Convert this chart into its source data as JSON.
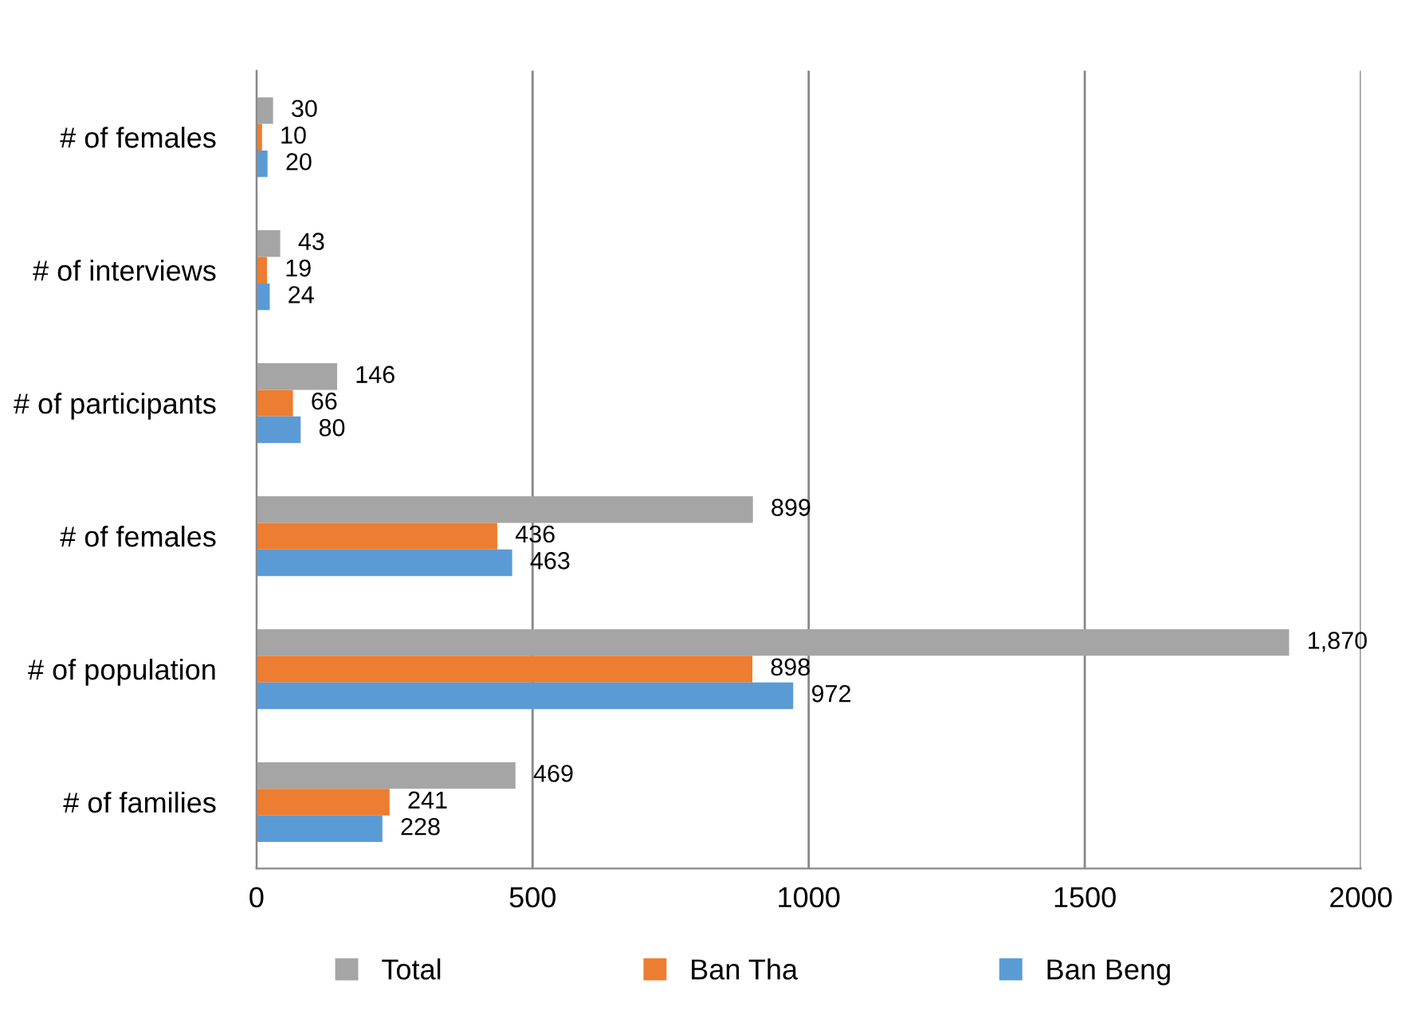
{
  "chart_data": {
    "type": "bar",
    "orientation": "horizontal",
    "categories": [
      "# of females",
      "# of interviews",
      "# of participants",
      "# of females",
      "# of population",
      "# of families"
    ],
    "series": [
      {
        "name": "Total",
        "color": "#a5a5a5",
        "values": [
          30,
          43,
          146,
          899,
          1870,
          469
        ],
        "value_labels": [
          "30",
          "43",
          "146",
          "899",
          "1,870",
          "469"
        ]
      },
      {
        "name": "Ban Tha",
        "color": "#ed7d31",
        "values": [
          10,
          19,
          66,
          436,
          898,
          241
        ],
        "value_labels": [
          "10",
          "19",
          "66",
          "436",
          "898",
          "241"
        ]
      },
      {
        "name": "Ban Beng",
        "color": "#5b9bd5",
        "values": [
          20,
          24,
          80,
          463,
          972,
          228
        ],
        "value_labels": [
          "20",
          "24",
          "80",
          "463",
          "972",
          "228"
        ]
      }
    ],
    "xlim": [
      0,
      2000
    ],
    "xticks": [
      0,
      500,
      1000,
      1500,
      2000
    ],
    "grid": "x",
    "legend": "bottom"
  }
}
